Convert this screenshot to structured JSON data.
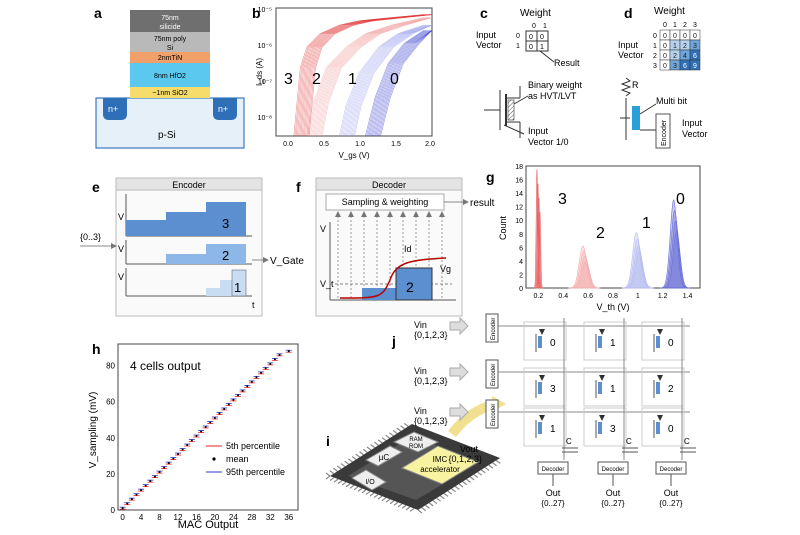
{
  "panels": {
    "a": {
      "label": "a",
      "layers": [
        "75nm silicide",
        "75nm poly Si",
        "2nmTiN",
        "8nm HfO2",
        "~1nm SiO2"
      ],
      "nplus": "n+",
      "substrate": "p-Si",
      "colors": {
        "silicide": "#6f6f6f",
        "poly": "#b9b9b9",
        "tin": "#f0a068",
        "hfo2": "#5bc8f0",
        "sio2": "#f6dc6a",
        "substrate": "#e6f0f8"
      }
    },
    "b": {
      "label": "b",
      "ylabel": "I_ds (A)",
      "xlabel": "V_gs (V)",
      "yticks": [
        "10⁻⁵",
        "10⁻⁶",
        "10⁻⁷",
        "10⁻⁸"
      ],
      "xticks": [
        "0.0",
        "0.5",
        "1.0",
        "1.5",
        "2.0"
      ],
      "curve_labels": [
        "3",
        "2",
        "1",
        "0"
      ],
      "colors": [
        "#e23b3b",
        "#f0a0a0",
        "#9aa0ee",
        "#3a3fcf"
      ]
    },
    "c": {
      "label": "c",
      "weight": "Weight",
      "cols": [
        "0",
        "1"
      ],
      "rows": [
        "0",
        "1"
      ],
      "cells": [
        [
          "0",
          "0"
        ],
        [
          "0",
          "1"
        ]
      ],
      "input_vector": "Input Vector",
      "result": "Result",
      "binary_weight": "Binary weight as HVT/LVT",
      "input_vector_10": "Input Vector 1/0"
    },
    "d": {
      "label": "d",
      "weight": "Weight",
      "cols": [
        "0",
        "1",
        "2",
        "3"
      ],
      "rows": [
        "0",
        "1",
        "2",
        "3"
      ],
      "cells": [
        [
          "0",
          "0",
          "0",
          "0"
        ],
        [
          "0",
          "1",
          "2",
          "3"
        ],
        [
          "0",
          "2",
          "4",
          "6"
        ],
        [
          "0",
          "3",
          "6",
          "9"
        ]
      ],
      "input_vector": "Input Vector",
      "r": "R",
      "multi_bit": "Multi bit",
      "encoder": "Encoder",
      "input_vector2": "Input Vector"
    },
    "e": {
      "label": "e",
      "title": "Encoder",
      "input": "{0..3}",
      "vaxis": "V",
      "taxis": "t",
      "levels": [
        "3",
        "2",
        "1"
      ],
      "output": "V_Gate"
    },
    "f": {
      "label": "f",
      "title": "Decoder",
      "sampling": "Sampling & weighting",
      "result": "result",
      "vaxis": "V",
      "vt": "V_t",
      "id": "Id",
      "vg": "Vg",
      "level": "2"
    },
    "g": {
      "label": "g",
      "ylabel": "Count",
      "xlabel": "V_th (V)",
      "yticks": [
        "0",
        "2",
        "4",
        "6",
        "8",
        "10",
        "12",
        "14",
        "16",
        "18"
      ],
      "xticks": [
        "0.2",
        "0.4",
        "0.6",
        "0.8",
        "1",
        "1.2",
        "1.4"
      ],
      "peak_labels": [
        "3",
        "2",
        "1",
        "0"
      ]
    },
    "h": {
      "label": "h",
      "title": "4 cells output",
      "ylabel": "V_sampling (mV)",
      "xlabel": "MAC Output",
      "yticks": [
        "0",
        "20",
        "40",
        "60",
        "80"
      ],
      "xticks": [
        "0",
        "4",
        "8",
        "12",
        "16",
        "20",
        "24",
        "28",
        "32",
        "36"
      ],
      "legend": [
        "5th percentile",
        "mean",
        "95th percentile"
      ]
    },
    "i": {
      "label": "i",
      "uc": "µC",
      "ram": "RAM",
      "rom": "ROM",
      "io": "I/O",
      "accel": "IMC accelerator"
    },
    "j": {
      "label": "j",
      "vin": "Vin",
      "vin_set": "{0,1,2,3}",
      "encoder": "Encoder",
      "weights": [
        [
          "0",
          "1",
          "0"
        ],
        [
          "3",
          "1",
          "2"
        ],
        [
          "1",
          "3",
          "0"
        ]
      ],
      "cap": "C",
      "vout": "Vout",
      "vout_set": "{0,1,2,3}",
      "decoder": "Decoder",
      "out": "Out",
      "out_set": "{0..27}"
    }
  },
  "chart_data": [
    {
      "type": "line",
      "panel": "b",
      "xlabel": "V_gs (V)",
      "ylabel": "I_ds (A)",
      "ylim": [
        1e-08,
        1e-05
      ],
      "xlim": [
        -0.4,
        2.0
      ],
      "yscale": "log",
      "series": [
        {
          "name": "3",
          "x": [
            0.0,
            0.1,
            0.2,
            0.4,
            0.7,
            1.0,
            1.5,
            2.0
          ],
          "y": [
            1e-08,
            4e-07,
            1.2e-06,
            2.5e-06,
            4e-06,
            5e-06,
            6e-06,
            7e-06
          ]
        },
        {
          "name": "2",
          "x": [
            0.2,
            0.3,
            0.5,
            0.8,
            1.1,
            1.5,
            2.0
          ],
          "y": [
            1e-08,
            6e-08,
            4e-07,
            1.2e-06,
            2.5e-06,
            4e-06,
            6e-06
          ]
        },
        {
          "name": "1",
          "x": [
            0.7,
            0.8,
            1.0,
            1.3,
            1.6,
            2.0
          ],
          "y": [
            1e-08,
            5e-08,
            3e-07,
            1.2e-06,
            2.5e-06,
            4e-06
          ]
        },
        {
          "name": "0",
          "x": [
            1.1,
            1.25,
            1.45,
            1.7,
            2.0
          ],
          "y": [
            1e-08,
            8e-08,
            5e-07,
            1.5e-06,
            3e-06
          ]
        }
      ]
    },
    {
      "type": "area",
      "panel": "g",
      "xlabel": "V_th (V)",
      "ylabel": "Count",
      "xlim": [
        0.1,
        1.5
      ],
      "ylim": [
        0,
        18
      ],
      "series": [
        {
          "name": "3",
          "mean": 0.2,
          "sd": 0.006,
          "peak": 17.5
        },
        {
          "name": "2",
          "mean": 0.57,
          "sd": 0.03,
          "peak": 6.2
        },
        {
          "name": "1",
          "mean": 1.0,
          "sd": 0.03,
          "peak": 8.2
        },
        {
          "name": "0",
          "mean": 1.3,
          "sd": 0.028,
          "peak": 13
        }
      ]
    },
    {
      "type": "scatter",
      "panel": "h",
      "xlabel": "MAC Output",
      "ylabel": "V_sampling (mV)",
      "xlim": [
        -1,
        38
      ],
      "ylim": [
        0,
        92
      ],
      "series": [
        {
          "name": "mean",
          "x": [
            0,
            1,
            2,
            3,
            4,
            5,
            6,
            7,
            8,
            9,
            10,
            11,
            12,
            13,
            14,
            15,
            16,
            17,
            18,
            19,
            20,
            21,
            22,
            23,
            24,
            25,
            26,
            27,
            28,
            29,
            30,
            31,
            32,
            33,
            34,
            36
          ],
          "y": [
            1,
            3.5,
            6,
            8.5,
            11,
            13.5,
            16,
            18.5,
            21,
            23.5,
            26,
            28.5,
            31,
            33.5,
            36,
            38.5,
            41,
            43.5,
            46,
            48.5,
            51,
            53.5,
            56,
            58.5,
            61,
            63.5,
            66,
            68.5,
            71,
            73.5,
            76,
            78.5,
            81,
            83.5,
            86,
            88
          ]
        }
      ]
    }
  ]
}
